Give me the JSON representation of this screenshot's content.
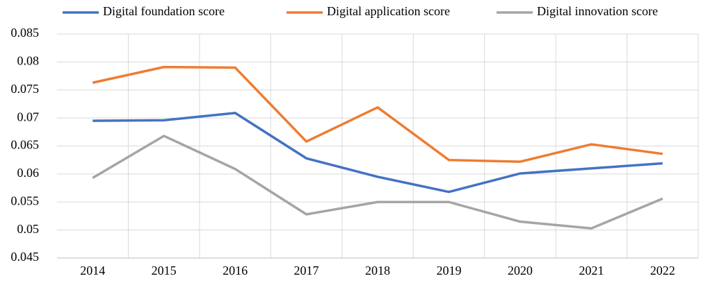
{
  "chart_data": {
    "type": "line",
    "categories": [
      "2014",
      "2015",
      "2016",
      "2017",
      "2018",
      "2019",
      "2020",
      "2021",
      "2022"
    ],
    "series": [
      {
        "name": "Digital foundation score",
        "color": "#4472c4",
        "values": [
          0.0695,
          0.0696,
          0.0709,
          0.0628,
          0.0595,
          0.0568,
          0.0601,
          0.061,
          0.0619
        ]
      },
      {
        "name": "Digital application score",
        "color": "#ed7d31",
        "values": [
          0.0763,
          0.0791,
          0.079,
          0.0658,
          0.0719,
          0.0625,
          0.0622,
          0.0653,
          0.0636
        ]
      },
      {
        "name": "Digital innovation score",
        "color": "#a5a5a5",
        "values": [
          0.0593,
          0.0668,
          0.0609,
          0.0528,
          0.055,
          0.055,
          0.0515,
          0.0503,
          0.0556
        ]
      }
    ],
    "ylim": [
      0.045,
      0.085
    ],
    "yticks": [
      0.045,
      0.05,
      0.055,
      0.06,
      0.065,
      0.07,
      0.075,
      0.08,
      0.085
    ],
    "grid": true,
    "legend": "top"
  }
}
